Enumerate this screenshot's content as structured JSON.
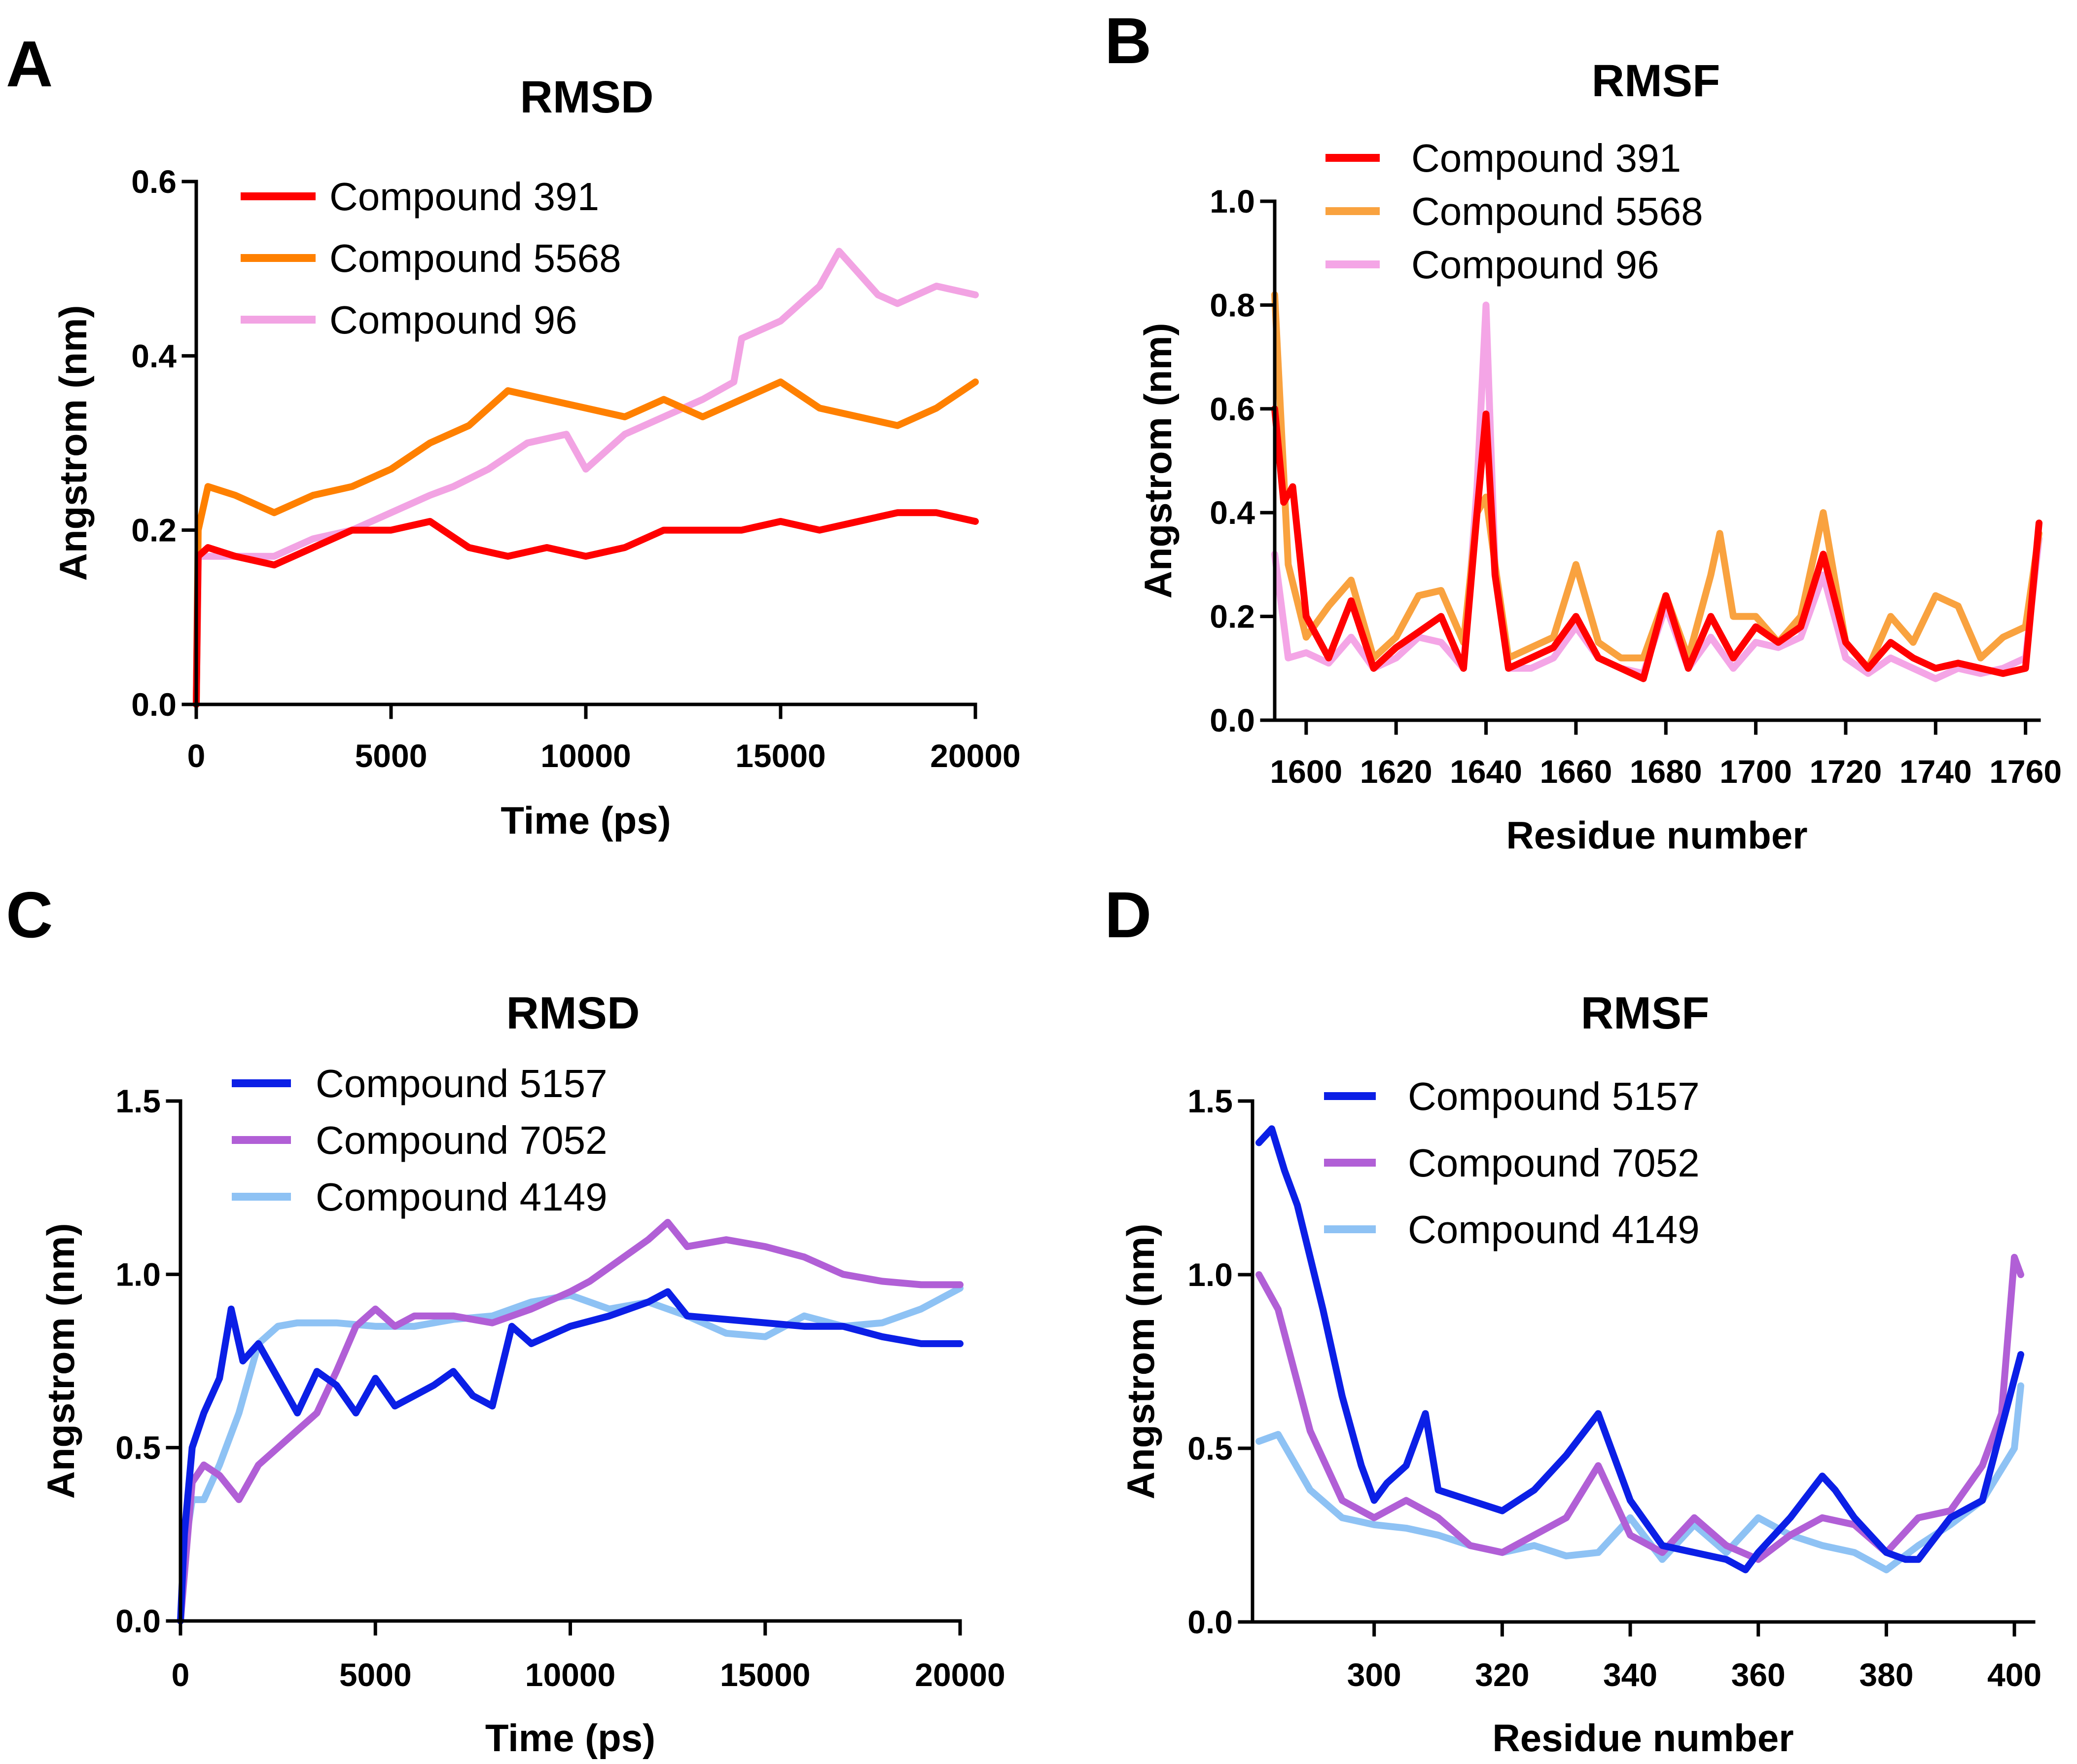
{
  "chart_data": [
    {
      "panel": "A",
      "type": "line",
      "title": "RMSD",
      "xlabel": "Time (ps)",
      "ylabel": "Angstrom (nm)",
      "xlim": [
        0,
        20000
      ],
      "ylim": [
        0,
        0.6
      ],
      "xticks": [
        0,
        5000,
        10000,
        15000,
        20000
      ],
      "xtick_labels": [
        "0",
        "5000",
        "10000",
        "15000",
        "20000"
      ],
      "yticks": [
        0,
        0.2,
        0.4,
        0.6
      ],
      "ytick_labels": [
        "0.0",
        "0.2",
        "0.4",
        "0.6"
      ],
      "legend_position": "top-left",
      "series": [
        {
          "name": "Compound 96",
          "color": "#f2a3e3",
          "x": [
            0,
            50,
            300,
            1000,
            2000,
            3000,
            4000,
            5000,
            6000,
            6600,
            7500,
            8500,
            9500,
            10000,
            11000,
            12000,
            13000,
            13800,
            14000,
            15000,
            16000,
            16500,
            17500,
            18000,
            19000,
            20000
          ],
          "y": [
            0,
            0.17,
            0.17,
            0.17,
            0.17,
            0.19,
            0.2,
            0.22,
            0.24,
            0.25,
            0.27,
            0.3,
            0.31,
            0.27,
            0.31,
            0.33,
            0.35,
            0.37,
            0.42,
            0.44,
            0.48,
            0.52,
            0.47,
            0.46,
            0.48,
            0.47
          ]
        },
        {
          "name": "Compound 5568",
          "color": "#ff8000",
          "x": [
            0,
            50,
            300,
            1000,
            2000,
            3000,
            4000,
            5000,
            6000,
            7000,
            8000,
            9000,
            10000,
            11000,
            12000,
            13000,
            14000,
            15000,
            16000,
            17000,
            18000,
            19000,
            20000
          ],
          "y": [
            0,
            0.2,
            0.25,
            0.24,
            0.22,
            0.24,
            0.25,
            0.27,
            0.3,
            0.32,
            0.36,
            0.35,
            0.34,
            0.33,
            0.35,
            0.33,
            0.35,
            0.37,
            0.34,
            0.33,
            0.32,
            0.34,
            0.37
          ]
        },
        {
          "name": "Compound 391",
          "color": "#ff0000",
          "x": [
            0,
            50,
            300,
            1000,
            2000,
            3000,
            4000,
            5000,
            6000,
            7000,
            8000,
            9000,
            10000,
            11000,
            12000,
            13000,
            14000,
            15000,
            16000,
            17000,
            18000,
            19000,
            20000
          ],
          "y": [
            0,
            0.17,
            0.18,
            0.17,
            0.16,
            0.18,
            0.2,
            0.2,
            0.21,
            0.18,
            0.17,
            0.18,
            0.17,
            0.18,
            0.2,
            0.2,
            0.2,
            0.21,
            0.2,
            0.21,
            0.22,
            0.22,
            0.21
          ]
        }
      ]
    },
    {
      "panel": "B",
      "type": "line",
      "title": "RMSF",
      "xlabel": "Residue number",
      "ylabel": "Angstrom (nm)",
      "xlim": [
        1593,
        1763
      ],
      "ylim": [
        0,
        1.0
      ],
      "xticks": [
        1600,
        1620,
        1640,
        1660,
        1680,
        1700,
        1720,
        1740,
        1760
      ],
      "xtick_labels": [
        "1600",
        "1620",
        "1640",
        "1660",
        "1680",
        "1700",
        "1720",
        "1740",
        "1760"
      ],
      "yticks": [
        0,
        0.2,
        0.4,
        0.6,
        0.8,
        1.0
      ],
      "ytick_labels": [
        "0.0",
        "0.2",
        "0.4",
        "0.6",
        "0.8",
        "1.0"
      ],
      "legend_position": "top-left",
      "series": [
        {
          "name": "Compound 96",
          "color": "#f4a5e6",
          "x": [
            1593,
            1596,
            1600,
            1605,
            1610,
            1615,
            1620,
            1625,
            1630,
            1635,
            1638,
            1640,
            1642,
            1645,
            1650,
            1655,
            1660,
            1665,
            1670,
            1675,
            1680,
            1685,
            1690,
            1695,
            1700,
            1705,
            1710,
            1715,
            1720,
            1725,
            1730,
            1735,
            1740,
            1745,
            1750,
            1755,
            1760,
            1763
          ],
          "y": [
            0.32,
            0.12,
            0.13,
            0.11,
            0.16,
            0.1,
            0.12,
            0.16,
            0.15,
            0.1,
            0.45,
            0.8,
            0.3,
            0.1,
            0.1,
            0.12,
            0.18,
            0.12,
            0.1,
            0.09,
            0.22,
            0.1,
            0.16,
            0.1,
            0.15,
            0.14,
            0.16,
            0.28,
            0.12,
            0.09,
            0.12,
            0.1,
            0.08,
            0.1,
            0.09,
            0.1,
            0.12,
            0.35
          ]
        },
        {
          "name": "Compound 5568",
          "color": "#f9a23f",
          "x": [
            1593,
            1596,
            1600,
            1605,
            1610,
            1615,
            1620,
            1625,
            1630,
            1635,
            1638,
            1640,
            1642,
            1645,
            1650,
            1655,
            1660,
            1665,
            1670,
            1675,
            1680,
            1685,
            1690,
            1692,
            1695,
            1700,
            1705,
            1710,
            1715,
            1720,
            1725,
            1730,
            1735,
            1740,
            1745,
            1750,
            1755,
            1760,
            1763
          ],
          "y": [
            0.82,
            0.3,
            0.16,
            0.22,
            0.27,
            0.12,
            0.16,
            0.24,
            0.25,
            0.15,
            0.4,
            0.43,
            0.3,
            0.12,
            0.14,
            0.16,
            0.3,
            0.15,
            0.12,
            0.12,
            0.24,
            0.12,
            0.28,
            0.36,
            0.2,
            0.2,
            0.15,
            0.2,
            0.4,
            0.15,
            0.1,
            0.2,
            0.15,
            0.24,
            0.22,
            0.12,
            0.16,
            0.18,
            0.36
          ]
        },
        {
          "name": "Compound 391",
          "color": "#ff0000",
          "x": [
            1593,
            1595,
            1597,
            1600,
            1605,
            1610,
            1615,
            1620,
            1625,
            1630,
            1635,
            1638,
            1640,
            1642,
            1645,
            1650,
            1655,
            1660,
            1665,
            1670,
            1675,
            1680,
            1685,
            1690,
            1695,
            1700,
            1705,
            1710,
            1715,
            1720,
            1725,
            1730,
            1735,
            1740,
            1745,
            1750,
            1755,
            1760,
            1763
          ],
          "y": [
            0.6,
            0.42,
            0.45,
            0.2,
            0.12,
            0.23,
            0.1,
            0.14,
            0.17,
            0.2,
            0.1,
            0.4,
            0.59,
            0.28,
            0.1,
            0.12,
            0.14,
            0.2,
            0.12,
            0.1,
            0.08,
            0.24,
            0.1,
            0.2,
            0.12,
            0.18,
            0.15,
            0.18,
            0.32,
            0.15,
            0.1,
            0.15,
            0.12,
            0.1,
            0.11,
            0.1,
            0.09,
            0.1,
            0.38
          ]
        }
      ]
    },
    {
      "panel": "C",
      "type": "line",
      "title": "RMSD",
      "xlabel": "Time (ps)",
      "ylabel": "Angstrom (nm)",
      "xlim": [
        0,
        20000
      ],
      "ylim": [
        0,
        1.5
      ],
      "xticks": [
        0,
        5000,
        10000,
        15000,
        20000
      ],
      "xtick_labels": [
        "0",
        "5000",
        "10000",
        "15000",
        "20000"
      ],
      "yticks": [
        0,
        0.5,
        1.0,
        1.5
      ],
      "ytick_labels": [
        "0.0",
        "0.5",
        "1.0",
        "1.5"
      ],
      "legend_position": "top-left",
      "series": [
        {
          "name": "Compound 4149",
          "color": "#8ec2f4",
          "x": [
            0,
            100,
            300,
            600,
            1000,
            1500,
            2000,
            2500,
            3000,
            4000,
            5000,
            6000,
            7000,
            8000,
            9000,
            10000,
            11000,
            12000,
            13000,
            14000,
            15000,
            16000,
            17000,
            18000,
            19000,
            20000
          ],
          "y": [
            0,
            0.2,
            0.35,
            0.35,
            0.45,
            0.6,
            0.8,
            0.85,
            0.86,
            0.86,
            0.85,
            0.85,
            0.87,
            0.88,
            0.92,
            0.94,
            0.9,
            0.92,
            0.88,
            0.83,
            0.82,
            0.88,
            0.85,
            0.86,
            0.9,
            0.96
          ]
        },
        {
          "name": "Compound 7052",
          "color": "#b15fd6",
          "x": [
            0,
            300,
            600,
            1000,
            1500,
            2000,
            2500,
            3000,
            3500,
            4000,
            4500,
            5000,
            5500,
            6000,
            7000,
            8000,
            9000,
            10000,
            10500,
            11000,
            12000,
            12500,
            13000,
            14000,
            15000,
            16000,
            17000,
            18000,
            19000,
            20000
          ],
          "y": [
            0,
            0.4,
            0.45,
            0.42,
            0.35,
            0.45,
            0.5,
            0.55,
            0.6,
            0.72,
            0.85,
            0.9,
            0.85,
            0.88,
            0.88,
            0.86,
            0.9,
            0.95,
            0.98,
            1.02,
            1.1,
            1.15,
            1.08,
            1.1,
            1.08,
            1.05,
            1.0,
            0.98,
            0.97,
            0.97
          ]
        },
        {
          "name": "Compound 5157",
          "color": "#0b1fe6",
          "x": [
            0,
            100,
            300,
            600,
            1000,
            1300,
            1600,
            2000,
            2500,
            3000,
            3500,
            4000,
            4500,
            5000,
            5500,
            6000,
            6500,
            7000,
            7500,
            8000,
            8500,
            9000,
            10000,
            11000,
            12000,
            12500,
            13000,
            14000,
            15000,
            16000,
            17000,
            18000,
            19000,
            20000
          ],
          "y": [
            0,
            0.25,
            0.5,
            0.6,
            0.7,
            0.9,
            0.75,
            0.8,
            0.7,
            0.6,
            0.72,
            0.68,
            0.6,
            0.7,
            0.62,
            0.65,
            0.68,
            0.72,
            0.65,
            0.62,
            0.85,
            0.8,
            0.85,
            0.88,
            0.92,
            0.95,
            0.88,
            0.87,
            0.86,
            0.85,
            0.85,
            0.82,
            0.8,
            0.8
          ]
        }
      ]
    },
    {
      "panel": "D",
      "type": "line",
      "title": "RMSF",
      "xlabel": "Residue number",
      "ylabel": "Angstrom (nm)",
      "xlim": [
        281,
        403
      ],
      "ylim": [
        0,
        1.5
      ],
      "xticks": [
        300,
        320,
        340,
        360,
        380,
        400
      ],
      "xtick_labels": [
        "300",
        "320",
        "340",
        "360",
        "380",
        "400"
      ],
      "yticks": [
        0,
        0.5,
        1.0,
        1.5
      ],
      "ytick_labels": [
        "0.0",
        "0.5",
        "1.0",
        "1.5"
      ],
      "legend_position": "top-left",
      "series": [
        {
          "name": "Compound 4149",
          "color": "#8ec2f4",
          "x": [
            282,
            285,
            290,
            295,
            300,
            305,
            310,
            315,
            320,
            325,
            330,
            335,
            340,
            345,
            350,
            355,
            360,
            365,
            370,
            375,
            380,
            385,
            390,
            395,
            400,
            401
          ],
          "y": [
            0.52,
            0.54,
            0.38,
            0.3,
            0.28,
            0.27,
            0.25,
            0.22,
            0.2,
            0.22,
            0.19,
            0.2,
            0.3,
            0.18,
            0.28,
            0.2,
            0.3,
            0.25,
            0.22,
            0.2,
            0.15,
            0.22,
            0.28,
            0.35,
            0.5,
            0.68
          ]
        },
        {
          "name": "Compound 7052",
          "color": "#b15fd6",
          "x": [
            282,
            285,
            290,
            295,
            300,
            305,
            310,
            315,
            320,
            325,
            330,
            335,
            340,
            345,
            350,
            355,
            360,
            365,
            370,
            375,
            380,
            385,
            390,
            395,
            398,
            400,
            401
          ],
          "y": [
            1.0,
            0.9,
            0.55,
            0.35,
            0.3,
            0.35,
            0.3,
            0.22,
            0.2,
            0.25,
            0.3,
            0.45,
            0.25,
            0.2,
            0.3,
            0.22,
            0.18,
            0.25,
            0.3,
            0.28,
            0.2,
            0.3,
            0.32,
            0.45,
            0.6,
            1.05,
            1.0
          ]
        },
        {
          "name": "Compound 5157",
          "color": "#0b1fe6",
          "x": [
            282,
            284,
            286,
            288,
            290,
            292,
            295,
            298,
            300,
            302,
            305,
            308,
            310,
            315,
            320,
            325,
            330,
            335,
            340,
            345,
            350,
            355,
            358,
            360,
            365,
            370,
            372,
            375,
            380,
            383,
            385,
            390,
            395,
            400,
            401
          ],
          "y": [
            1.38,
            1.42,
            1.3,
            1.2,
            1.05,
            0.9,
            0.65,
            0.45,
            0.35,
            0.4,
            0.45,
            0.6,
            0.38,
            0.35,
            0.32,
            0.38,
            0.48,
            0.6,
            0.35,
            0.22,
            0.2,
            0.18,
            0.15,
            0.2,
            0.3,
            0.42,
            0.38,
            0.3,
            0.2,
            0.18,
            0.18,
            0.3,
            0.35,
            0.7,
            0.77
          ]
        }
      ]
    }
  ]
}
